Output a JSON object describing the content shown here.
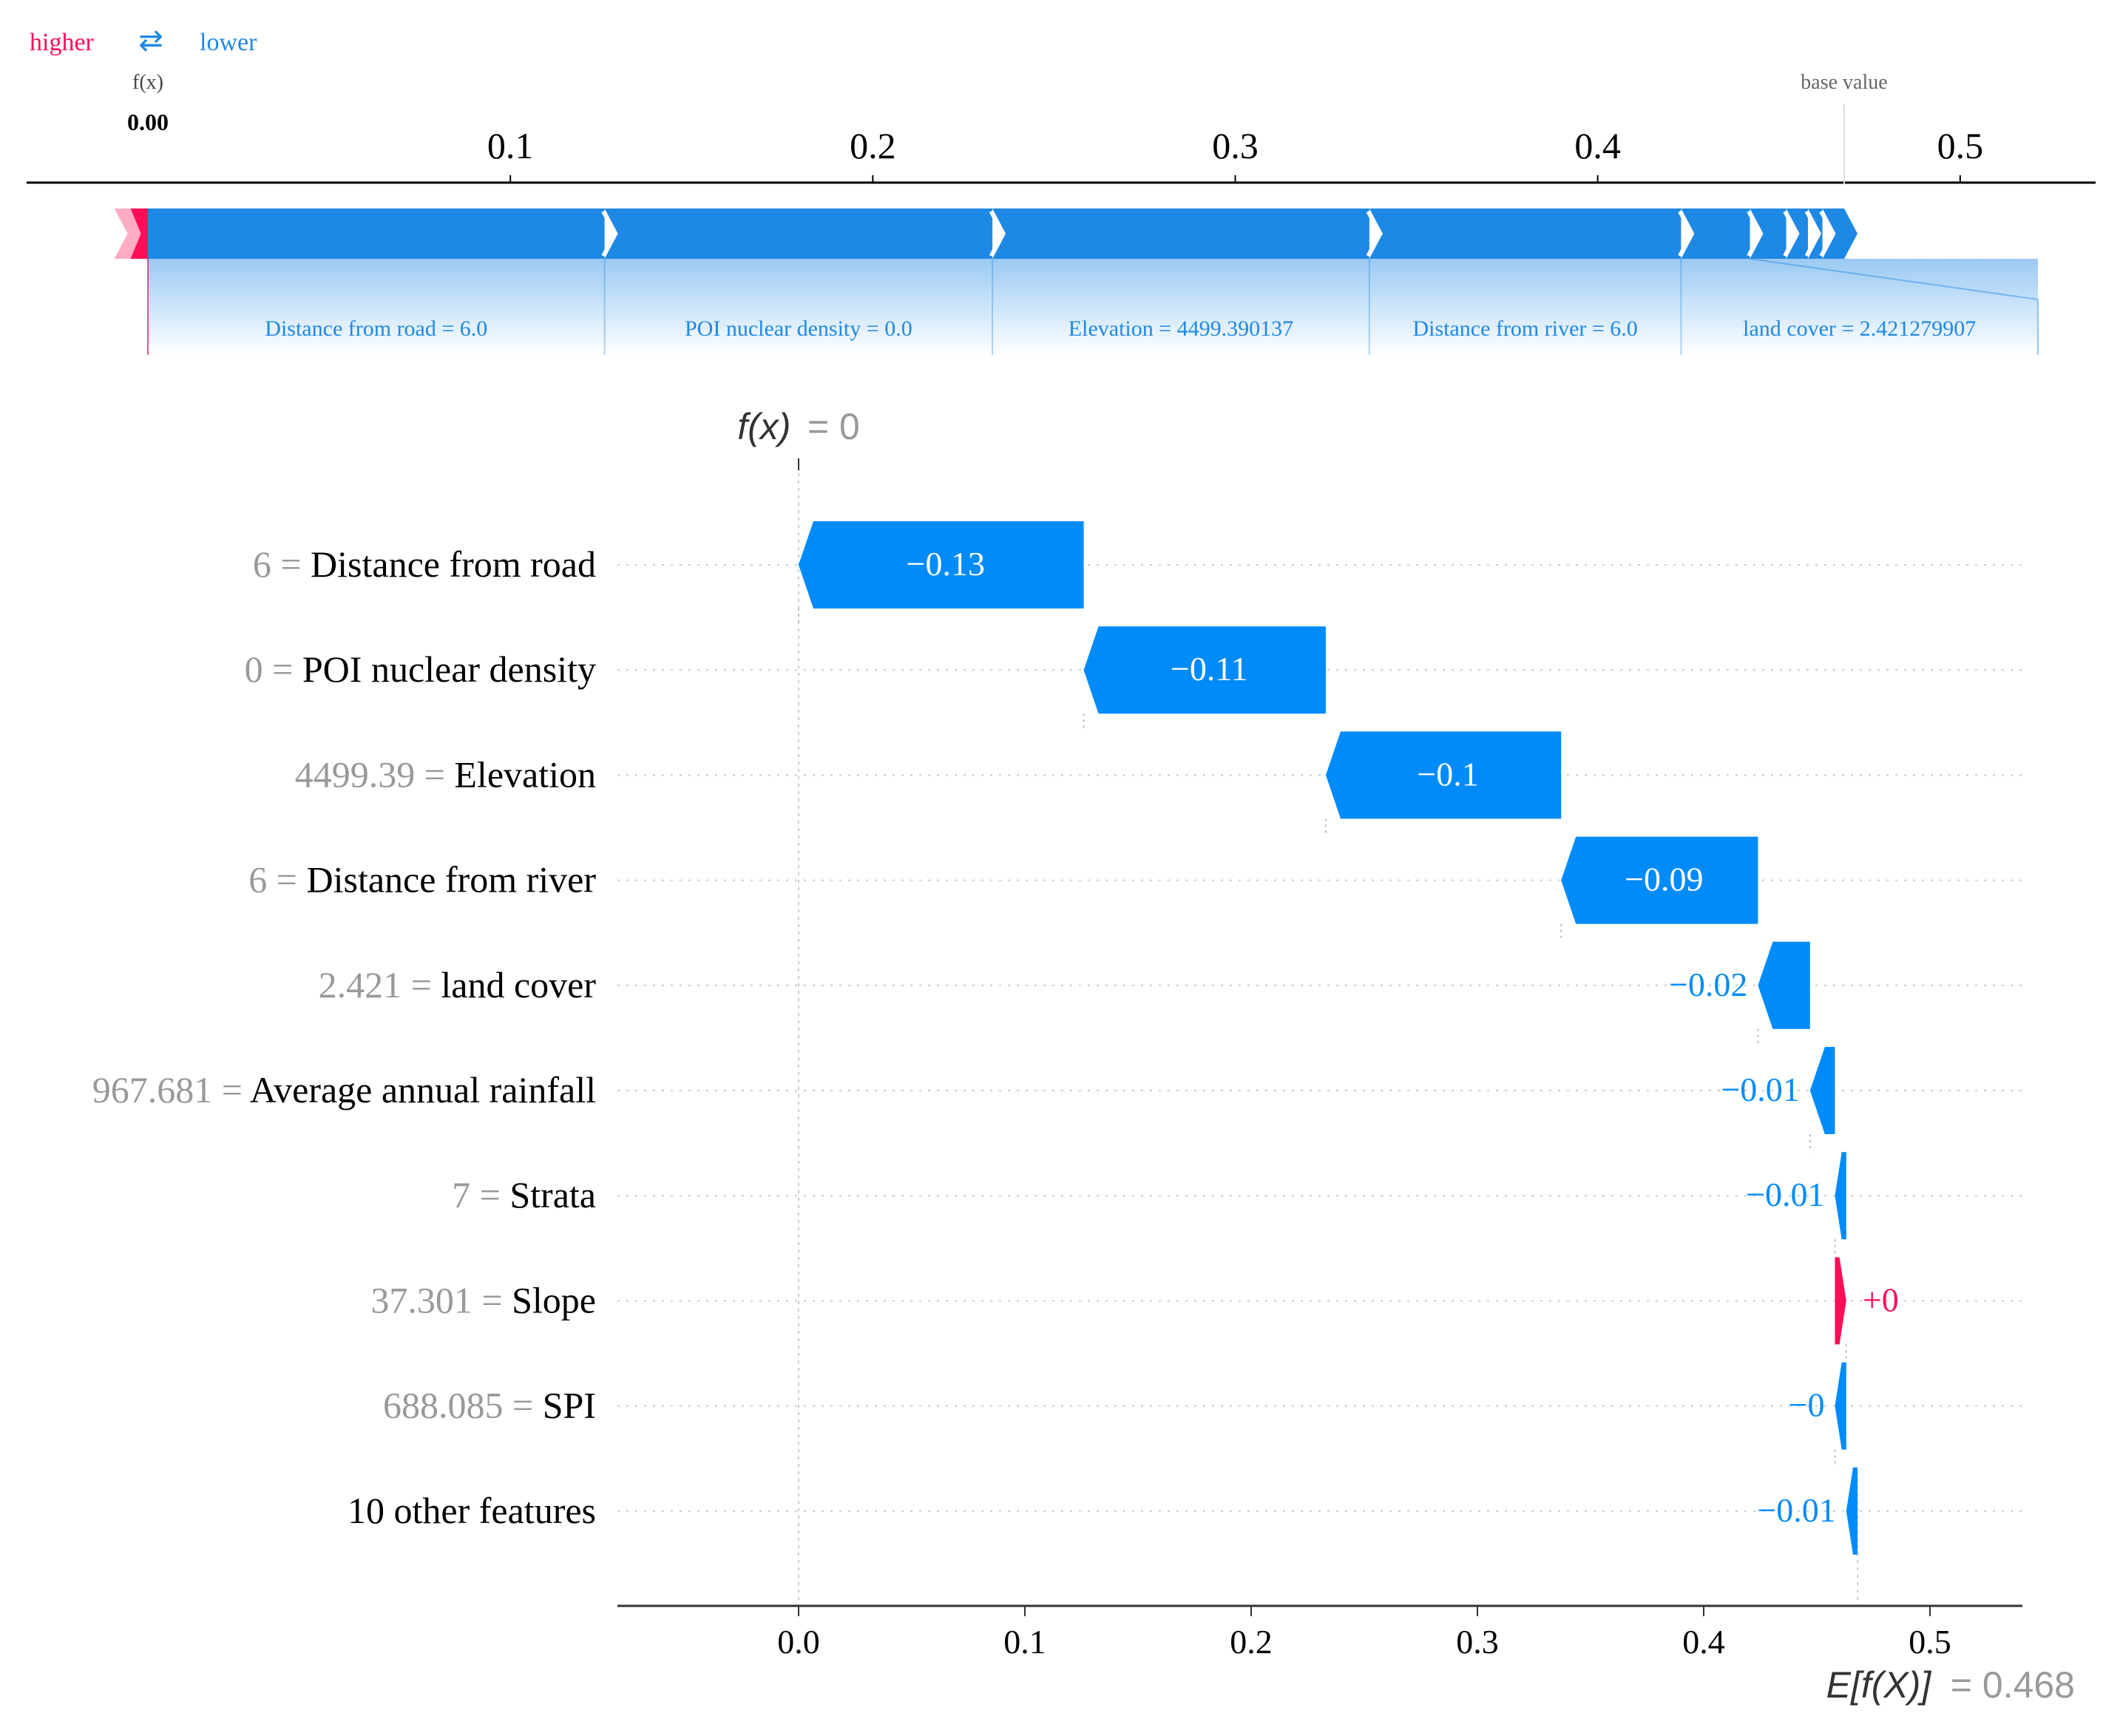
{
  "chart_data": [
    {
      "type": "force_plot",
      "legend": {
        "higher": "higher",
        "lower": "lower",
        "arrows_glyph": "⇄"
      },
      "fx_label": "f(x)",
      "fx_value": "0.00",
      "base_value_label": "base value",
      "axis_ticks": [
        {
          "value": 0.1,
          "label": "0.1"
        },
        {
          "value": 0.2,
          "label": "0.2"
        },
        {
          "value": 0.3,
          "label": "0.3"
        },
        {
          "value": 0.4,
          "label": "0.4"
        },
        {
          "value": 0.5,
          "label": "0.5"
        }
      ],
      "xlim": [
        -0.034,
        0.537
      ],
      "base_value": 0.468,
      "output_value": 0.0,
      "segments": [
        {
          "start": 0.0,
          "end": 0.126,
          "label": "Distance from road  = 6.0"
        },
        {
          "start": 0.126,
          "end": 0.233,
          "label": "POI nuclear density = 0.0"
        },
        {
          "start": 0.233,
          "end": 0.337,
          "label": "Elevation = 4499.390137"
        },
        {
          "start": 0.337,
          "end": 0.423,
          "label": "Distance from river = 6.0"
        },
        {
          "start": 0.423,
          "end": 0.442,
          "label": "land cover = 2.421279907"
        },
        {
          "start": 0.442,
          "end": 0.452,
          "label": ""
        },
        {
          "start": 0.452,
          "end": 0.458,
          "label": ""
        },
        {
          "start": 0.458,
          "end": 0.462,
          "label": ""
        },
        {
          "start": 0.462,
          "end": 0.468,
          "label": ""
        }
      ],
      "positive_segment": {
        "start": -0.006,
        "end": 0.0
      },
      "colors": {
        "positive": "#ff0d57",
        "negative": "#1e88e5"
      }
    },
    {
      "type": "waterfall",
      "title_fx": "f(x)",
      "title_value": "= 0",
      "base_label": "E[f(X)]",
      "base_label_value": "= 0.468",
      "base_value": 0.468,
      "xlim": [
        -0.08,
        0.54
      ],
      "x_ticks": [
        {
          "value": 0.0,
          "label": "0.0"
        },
        {
          "value": 0.1,
          "label": "0.1"
        },
        {
          "value": 0.2,
          "label": "0.2"
        },
        {
          "value": 0.3,
          "label": "0.3"
        },
        {
          "value": 0.4,
          "label": "0.4"
        },
        {
          "value": 0.5,
          "label": "0.5"
        }
      ],
      "rows": [
        {
          "value_text": "6",
          "feature": "Distance from road",
          "start": 0.126,
          "end": 0.0,
          "label": "−0.13",
          "sign": "neg"
        },
        {
          "value_text": "0",
          "feature": "POI nuclear density",
          "start": 0.233,
          "end": 0.126,
          "label": "−0.11",
          "sign": "neg"
        },
        {
          "value_text": "4499.39",
          "feature": "Elevation",
          "start": 0.337,
          "end": 0.233,
          "label": "−0.1",
          "sign": "neg"
        },
        {
          "value_text": "6",
          "feature": "Distance from river",
          "start": 0.424,
          "end": 0.337,
          "label": "−0.09",
          "sign": "neg"
        },
        {
          "value_text": "2.421",
          "feature": "land cover",
          "start": 0.447,
          "end": 0.424,
          "label": "−0.02",
          "sign": "neg"
        },
        {
          "value_text": "967.681",
          "feature": "Average annual rainfall",
          "start": 0.458,
          "end": 0.447,
          "label": "−0.01",
          "sign": "neg"
        },
        {
          "value_text": "7",
          "feature": "Strata",
          "start": 0.463,
          "end": 0.458,
          "label": "−0.01",
          "sign": "neg"
        },
        {
          "value_text": "37.301",
          "feature": "Slope",
          "start": 0.458,
          "end": 0.463,
          "label": "+0",
          "sign": "pos"
        },
        {
          "value_text": "688.085",
          "feature": "SPI",
          "start": 0.463,
          "end": 0.458,
          "label": "−0",
          "sign": "neg"
        },
        {
          "value_text": "",
          "feature": "10 other features",
          "start": 0.468,
          "end": 0.463,
          "label": "−0.01",
          "sign": "neg"
        }
      ],
      "colors": {
        "positive": "#ff0d57",
        "negative": "#008bfb",
        "text_gray": "#999999"
      }
    }
  ]
}
